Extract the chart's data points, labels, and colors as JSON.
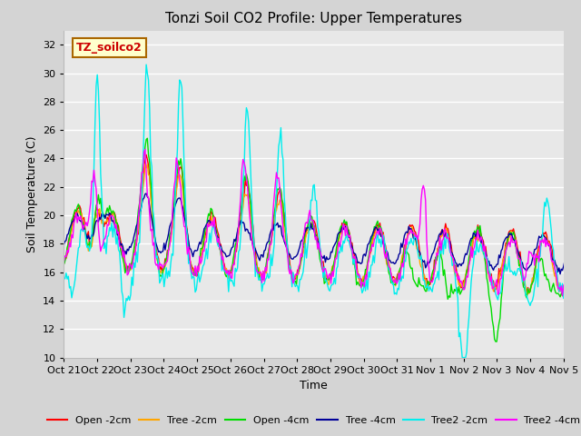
{
  "title": "Tonzi Soil CO2 Profile: Upper Temperatures",
  "xlabel": "Time",
  "ylabel": "Soil Temperature (C)",
  "ylim": [
    10,
    33
  ],
  "yticks": [
    10,
    12,
    14,
    16,
    18,
    20,
    22,
    24,
    26,
    28,
    30,
    32
  ],
  "watermark_text": "TZ_soilco2",
  "fig_bg_color": "#d4d4d4",
  "plot_bg_color": "#e8e8e8",
  "series_colors": {
    "Open -2cm": "#ff0000",
    "Tree -2cm": "#ffa500",
    "Open -4cm": "#00dd00",
    "Tree -4cm": "#000099",
    "Tree2 -2cm": "#00eeee",
    "Tree2 -4cm": "#ff00ff"
  },
  "x_tick_labels": [
    "Oct 21",
    "Oct 22",
    "Oct 23",
    "Oct 24",
    "Oct 25",
    "Oct 26",
    "Oct 27",
    "Oct 28",
    "Oct 29",
    "Oct 30",
    "Oct 31",
    "Nov 1",
    "Nov 2",
    "Nov 3",
    "Nov 4",
    "Nov 5"
  ]
}
